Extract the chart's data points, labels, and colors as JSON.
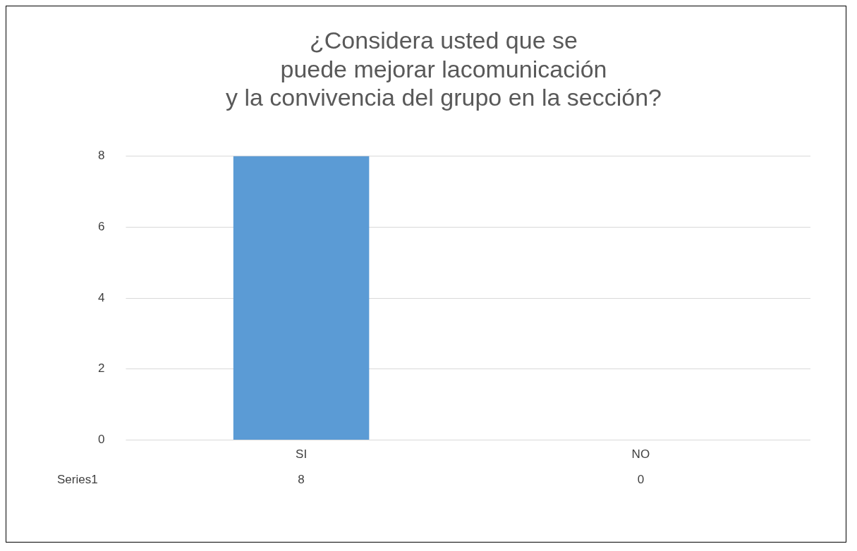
{
  "chart_data": {
    "type": "bar",
    "title": "¿Considera usted que se\npuede mejorar lacomunicación\ny la convivencia del grupo en la sección?",
    "categories": [
      "SI",
      "NO"
    ],
    "series": [
      {
        "name": "Series1",
        "color": "#5b9bd5",
        "values": [
          8,
          0
        ]
      }
    ],
    "ylim": [
      0,
      8
    ],
    "yticks": [
      0,
      2,
      4,
      6,
      8
    ],
    "grid": "y",
    "legend": false,
    "data_labels": true
  }
}
